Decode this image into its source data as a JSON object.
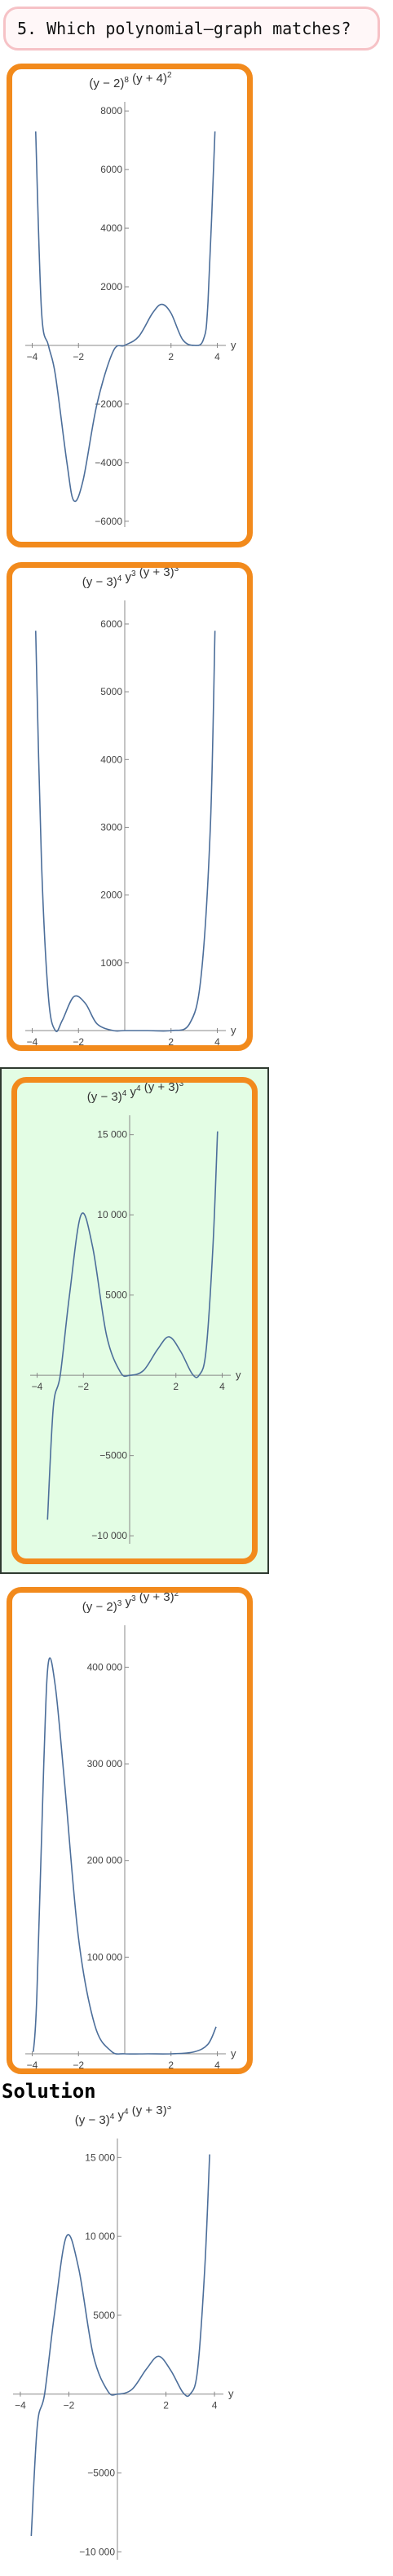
{
  "question": {
    "number": "5.",
    "text": "Which polynomial–graph matches?"
  },
  "solution": {
    "heading": "Solution"
  },
  "colors": {
    "card_border": "#f28a1c",
    "selected_bg": "#e3fde4",
    "curve": "#4c6e9a"
  },
  "chart_data": [
    {
      "type": "line",
      "title": "(y − 2)^8 (y + 4)^2",
      "xlabel": "y",
      "xlim": [
        -4.3,
        4.3
      ],
      "ylim": [
        -6200,
        8200
      ],
      "xticks": [
        -4,
        -2,
        2,
        4
      ],
      "yticks": [
        -6000,
        -4000,
        -2000,
        2000,
        4000,
        6000,
        8000
      ],
      "ytick_labels": [
        "−6000",
        "−4000",
        "−2000",
        "2000",
        "4000",
        "6000",
        "8000"
      ],
      "series": [
        {
          "values": [
            [
              -3.85,
              7300
            ],
            [
              -3.6,
              1200
            ],
            [
              -3.3,
              0
            ],
            [
              -3.0,
              -1000
            ],
            [
              -2.5,
              -4000
            ],
            [
              -2.2,
              -5300
            ],
            [
              -1.8,
              -4600
            ],
            [
              -1.2,
              -2000
            ],
            [
              -0.5,
              -200
            ],
            [
              0,
              0
            ],
            [
              0.6,
              300
            ],
            [
              1.2,
              1100
            ],
            [
              1.6,
              1400
            ],
            [
              2.0,
              1100
            ],
            [
              2.5,
              200
            ],
            [
              3.0,
              0
            ],
            [
              3.4,
              200
            ],
            [
              3.6,
              1500
            ],
            [
              3.9,
              7300
            ]
          ]
        }
      ]
    },
    {
      "type": "line",
      "title": "(y − 3)^4 y^3 (y + 3)^3",
      "xlabel": "y",
      "xlim": [
        -4.3,
        4.3
      ],
      "ylim": [
        0,
        6300
      ],
      "xticks": [
        -4,
        -2,
        2,
        4
      ],
      "yticks": [
        1000,
        2000,
        3000,
        4000,
        5000,
        6000
      ],
      "ytick_labels": [
        "1000",
        "2000",
        "3000",
        "4000",
        "5000",
        "6000"
      ],
      "series": [
        {
          "values": [
            [
              -3.85,
              5900
            ],
            [
              -3.6,
              2500
            ],
            [
              -3.3,
              500
            ],
            [
              -3.0,
              0
            ],
            [
              -2.7,
              150
            ],
            [
              -2.2,
              500
            ],
            [
              -1.7,
              400
            ],
            [
              -1.2,
              100
            ],
            [
              -0.5,
              0
            ],
            [
              0,
              0
            ],
            [
              1,
              0
            ],
            [
              2,
              0
            ],
            [
              2.8,
              100
            ],
            [
              3.3,
              800
            ],
            [
              3.7,
              3000
            ],
            [
              3.9,
              5900
            ]
          ]
        }
      ]
    },
    {
      "type": "line",
      "title": "(y − 3)^4 y^4 (y + 3)^3",
      "xlabel": "y",
      "xlim": [
        -4.3,
        4.3
      ],
      "ylim": [
        -10500,
        16000
      ],
      "xticks": [
        -4,
        -2,
        2,
        4
      ],
      "yticks": [
        -10000,
        -5000,
        5000,
        10000,
        15000
      ],
      "ytick_labels": [
        "−10 000",
        "−5000",
        "5000",
        "10 000",
        "15 000"
      ],
      "series": [
        {
          "values": [
            [
              -3.55,
              -9000
            ],
            [
              -3.3,
              -2000
            ],
            [
              -3.0,
              0
            ],
            [
              -2.6,
              5000
            ],
            [
              -2.1,
              10000
            ],
            [
              -1.6,
              8000
            ],
            [
              -1.0,
              2500
            ],
            [
              -0.4,
              200
            ],
            [
              0,
              0
            ],
            [
              0.6,
              300
            ],
            [
              1.2,
              1600
            ],
            [
              1.7,
              2400
            ],
            [
              2.2,
              1500
            ],
            [
              2.7,
              100
            ],
            [
              3.0,
              0
            ],
            [
              3.3,
              1500
            ],
            [
              3.6,
              8000
            ],
            [
              3.8,
              15200
            ]
          ]
        }
      ]
    },
    {
      "type": "line",
      "title": "(y − 2)^3 y^3 (y + 3)^2",
      "xlabel": "y",
      "xlim": [
        -4.3,
        4.3
      ],
      "ylim": [
        0,
        440000
      ],
      "xticks": [
        -4,
        -2,
        2,
        4
      ],
      "yticks": [
        100000,
        200000,
        300000,
        400000
      ],
      "ytick_labels": [
        "100 000",
        "200 000",
        "300 000",
        "400 000"
      ],
      "series": [
        {
          "values": [
            [
              -3.95,
              2000
            ],
            [
              -3.8,
              60000
            ],
            [
              -3.5,
              300000
            ],
            [
              -3.3,
              405000
            ],
            [
              -3.0,
              380000
            ],
            [
              -2.6,
              280000
            ],
            [
              -2.0,
              120000
            ],
            [
              -1.3,
              30000
            ],
            [
              -0.6,
              3000
            ],
            [
              0,
              0
            ],
            [
              1,
              0
            ],
            [
              2,
              0
            ],
            [
              3,
              2000
            ],
            [
              3.6,
              10000
            ],
            [
              3.95,
              28000
            ]
          ]
        }
      ]
    }
  ]
}
